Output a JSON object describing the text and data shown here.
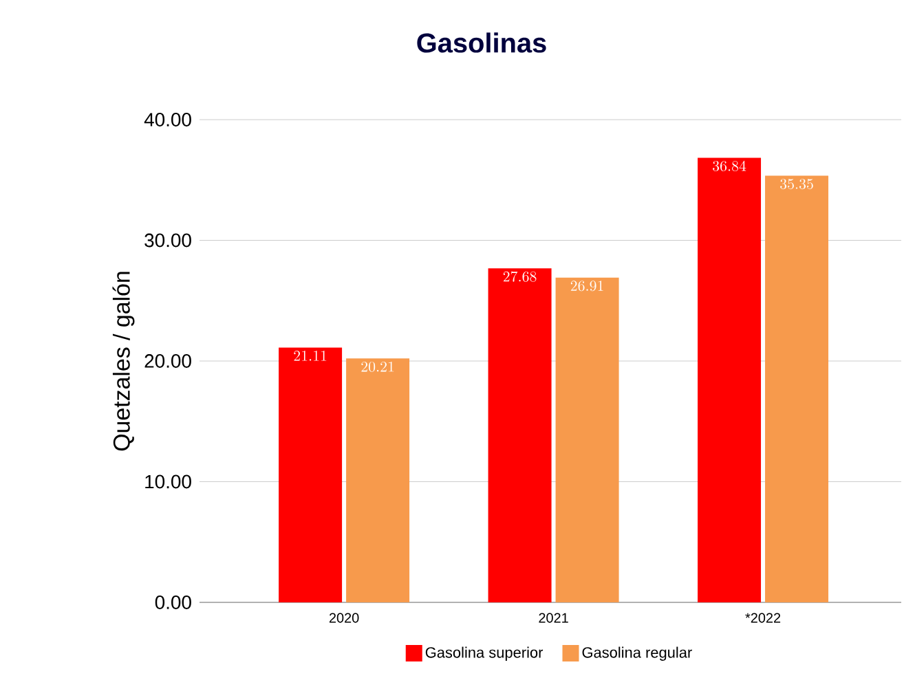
{
  "chart_data": {
    "type": "bar",
    "title": "Gasolinas",
    "ylabel": "Quetzales / galón",
    "categories": [
      "2020",
      "2021",
      "*2022"
    ],
    "series": [
      {
        "name": "Gasolina superior",
        "color": "#ff0000",
        "values": [
          21.11,
          27.68,
          36.84
        ]
      },
      {
        "name": "Gasolina regular",
        "color": "#f79a4c",
        "values": [
          20.21,
          26.91,
          35.35
        ]
      }
    ],
    "ylim": [
      0,
      40
    ],
    "yticks": [
      {
        "value": 0,
        "label": "0.00"
      },
      {
        "value": 10,
        "label": "10.00"
      },
      {
        "value": 20,
        "label": "20.00"
      },
      {
        "value": 30,
        "label": "30.00"
      },
      {
        "value": 40,
        "label": "40.00"
      }
    ],
    "grid": "y",
    "legend": "bottom",
    "data_labels": true
  }
}
